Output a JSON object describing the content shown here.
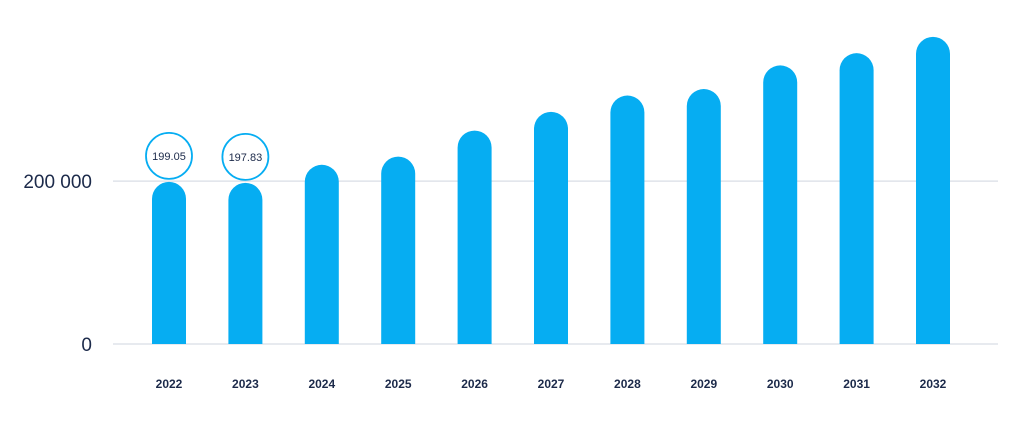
{
  "chart_data": {
    "type": "bar",
    "categories": [
      "2022",
      "2023",
      "2024",
      "2025",
      "2026",
      "2027",
      "2028",
      "2029",
      "2030",
      "2031",
      "2032"
    ],
    "values": [
      199050,
      197830,
      220000,
      230000,
      262000,
      285000,
      305000,
      313000,
      342000,
      357000,
      377000
    ],
    "data_labels": [
      "199.05",
      "197.83",
      "",
      "",
      "",
      "",
      "",
      "",
      "",
      "",
      ""
    ],
    "y_ticks": [
      {
        "value": 0,
        "label": "0"
      },
      {
        "value": 200000,
        "label": "200 000"
      }
    ],
    "ylim": [
      0,
      410000
    ],
    "grid": true,
    "colors": {
      "bar": "#06adf2",
      "label_circle_stroke": "#06adf2",
      "grid": "#dfe3ea",
      "text": "#1c2a4a"
    }
  }
}
